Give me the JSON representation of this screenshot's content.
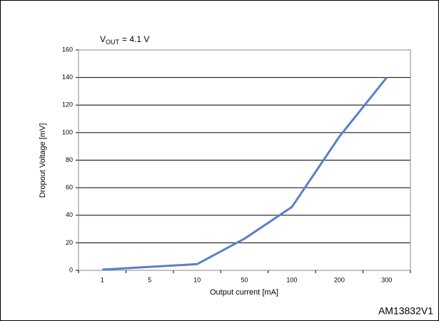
{
  "chart_data": {
    "type": "line",
    "annotation": {
      "main": "V",
      "sub": "OUT",
      "rest": "= 4.1 V"
    },
    "x_label": "Output current [mA]",
    "y_label": "Dropout Voltage [mV]",
    "figure_id": "AM13832V1",
    "categories": [
      "1",
      "5",
      "10",
      "50",
      "100",
      "200",
      "300"
    ],
    "series": [
      {
        "name": "Dropout voltage",
        "color": "#5b7fc7",
        "values": [
          0.5,
          2.5,
          4.5,
          23,
          46,
          97,
          140
        ]
      }
    ],
    "ylim": [
      0,
      160
    ],
    "yticks": [
      0,
      20,
      40,
      60,
      80,
      100,
      120,
      140,
      160
    ],
    "grid": true
  }
}
